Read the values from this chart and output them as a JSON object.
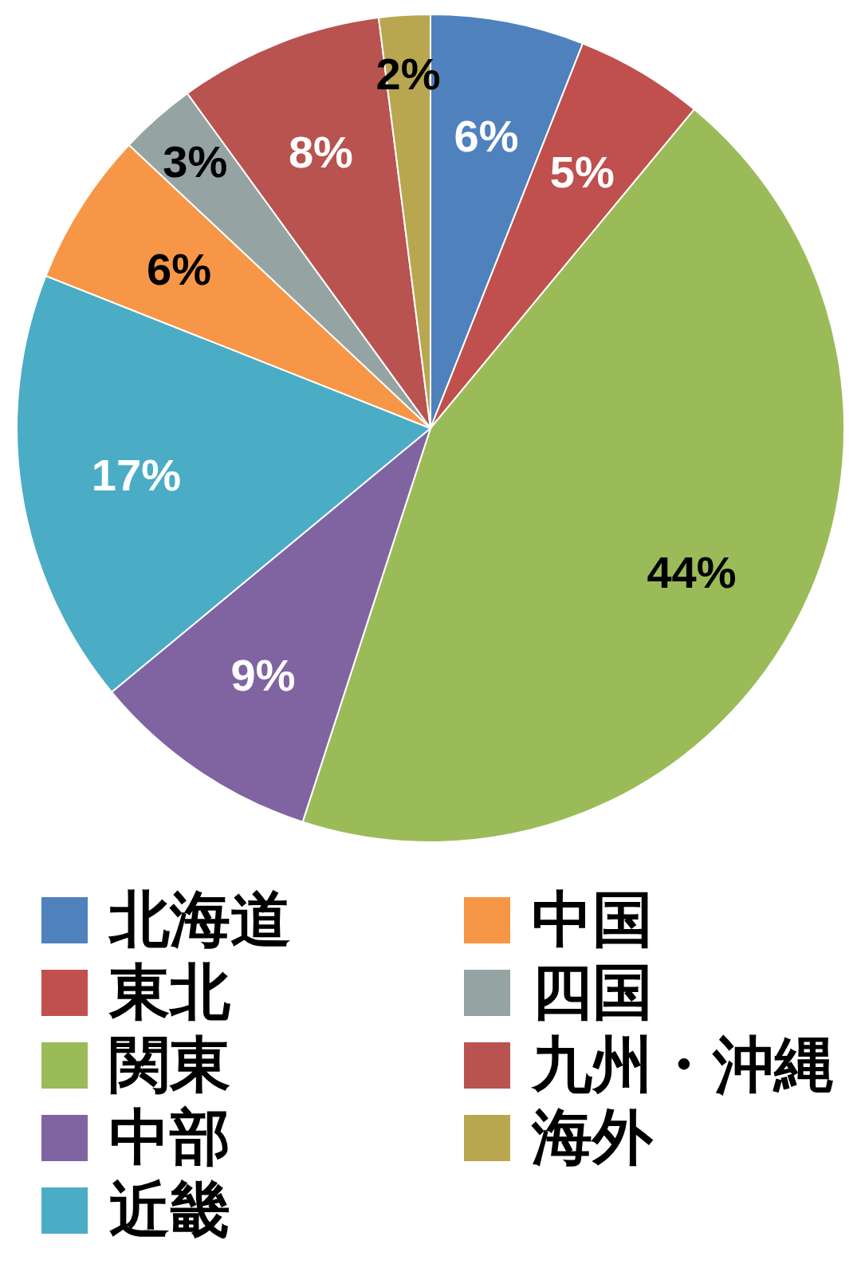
{
  "chart_data": {
    "type": "pie",
    "categories": [
      "北海道",
      "東北",
      "関東",
      "中部",
      "近畿",
      "中国",
      "四国",
      "九州・沖縄",
      "海外"
    ],
    "values": [
      6,
      5,
      44,
      9,
      17,
      6,
      3,
      8,
      2
    ],
    "colors": [
      "#4f81bd",
      "#c0504d",
      "#9bbb59",
      "#8064a2",
      "#4bacc6",
      "#f79646",
      "#95a3a3",
      "#b9534f",
      "#b8a74f"
    ],
    "value_labels": [
      "6%",
      "5%",
      "44%",
      "9%",
      "17%",
      "6%",
      "3%",
      "8%",
      "2%"
    ],
    "legend": "bottom"
  }
}
